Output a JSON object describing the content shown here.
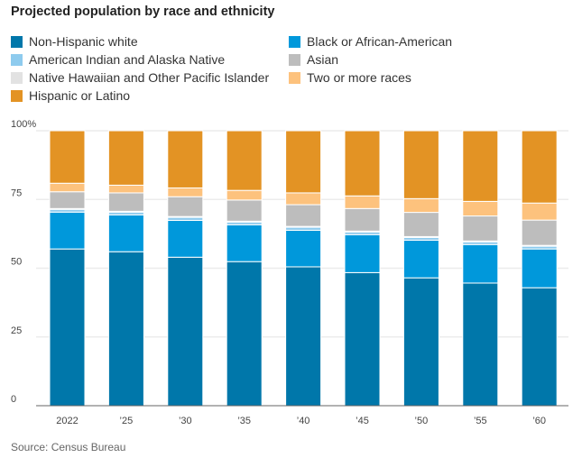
{
  "chart_data": {
    "type": "bar",
    "stacked": true,
    "title": "Projected population by race and ethnicity",
    "source": "Source: Census Bureau",
    "categories": [
      "2022",
      "’25",
      "’30",
      "’35",
      "’40",
      "’45",
      "’50",
      "’55",
      "’60"
    ],
    "ylim": [
      0,
      100
    ],
    "yticks": [
      0,
      25,
      50,
      75,
      100
    ],
    "ytick_labels": [
      "0",
      "25",
      "50",
      "75",
      "100%"
    ],
    "grid": true,
    "legend_position": "top",
    "series": [
      {
        "name": "Non-Hispanic white",
        "color": "#0077aa",
        "values": [
          57.0,
          56.0,
          54.0,
          52.4,
          50.5,
          48.4,
          46.5,
          44.6,
          42.9
        ]
      },
      {
        "name": "Black or African-American",
        "color": "#0098db",
        "values": [
          13.4,
          13.4,
          13.4,
          13.4,
          13.3,
          13.8,
          13.7,
          14.0,
          14.1
        ]
      },
      {
        "name": "American Indian and Alaska Native",
        "color": "#8ecbee",
        "values": [
          1.0,
          1.0,
          1.1,
          1.0,
          1.1,
          1.0,
          1.0,
          1.0,
          1.0
        ]
      },
      {
        "name": "Native Hawaiian and Other Pacific Islander",
        "color": "#e2e2e2",
        "values": [
          0.3,
          0.3,
          0.3,
          0.3,
          0.3,
          0.3,
          0.3,
          0.3,
          0.3
        ]
      },
      {
        "name": "Asian",
        "color": "#bdbdbd",
        "values": [
          6.1,
          6.7,
          7.2,
          7.7,
          7.9,
          8.2,
          8.8,
          9.1,
          9.2
        ]
      },
      {
        "name": "Two or more races",
        "color": "#fdc27d",
        "values": [
          3.1,
          2.8,
          3.2,
          3.5,
          4.3,
          4.6,
          5.0,
          5.3,
          6.2
        ]
      },
      {
        "name": "Hispanic or Latino",
        "color": "#e39324",
        "values": [
          19.1,
          19.8,
          20.8,
          21.7,
          22.6,
          23.7,
          24.7,
          25.7,
          26.3
        ]
      }
    ]
  }
}
